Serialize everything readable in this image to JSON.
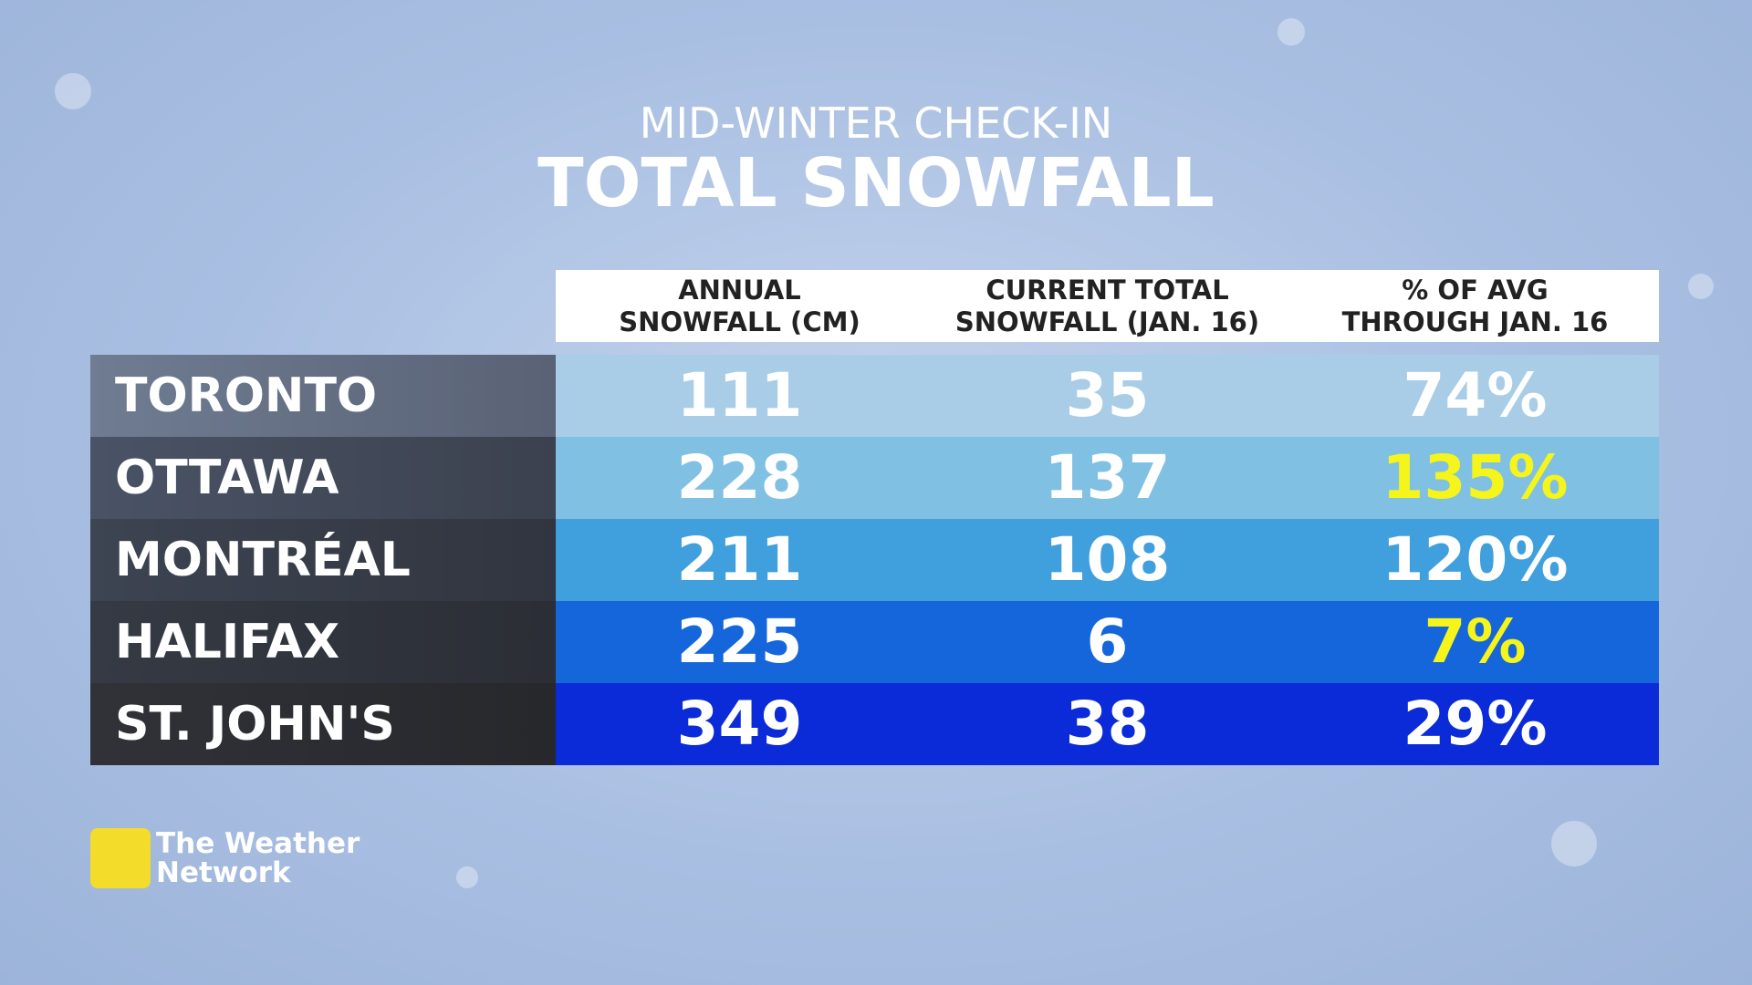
{
  "header": {
    "subtitle": "MID-WINTER CHECK-IN",
    "title": "TOTAL SNOWFALL"
  },
  "table": {
    "columns": [
      [
        "ANNUAL",
        "SNOWFALL (CM)"
      ],
      [
        "CURRENT TOTAL",
        "SNOWFALL (JAN. 16)"
      ],
      [
        "% OF AVG",
        "THROUGH JAN. 16"
      ]
    ],
    "rows": [
      [
        "TORONTO",
        "111",
        "35",
        "74%"
      ],
      [
        "OTTAWA",
        "228",
        "137",
        "135%"
      ],
      [
        "MONTRÉAL",
        "211",
        "108",
        "120%"
      ],
      [
        "HALIFAX",
        "225",
        "6",
        "7%"
      ],
      [
        "ST. JOHN'S",
        "349",
        "38",
        "29%"
      ]
    ]
  },
  "logo": {
    "line1": "The Weather",
    "line2": "Network"
  }
}
